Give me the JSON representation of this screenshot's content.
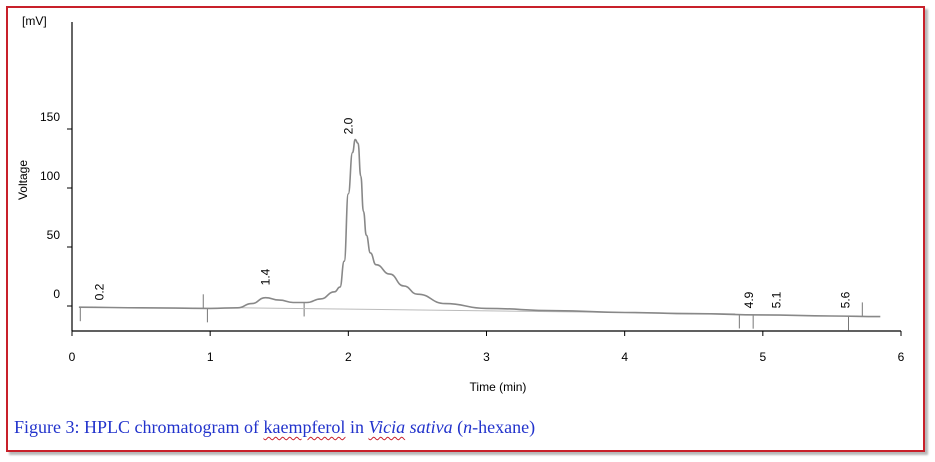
{
  "chart_data": {
    "type": "line",
    "xlabel": "Time (min)",
    "ylabel": "Voltage",
    "yunit": "[mV]",
    "xlim": [
      0,
      6
    ],
    "ylim": [
      -12,
      158
    ],
    "xticks": [
      "0",
      "1",
      "2",
      "3",
      "4",
      "5",
      "6"
    ],
    "yticks": [
      "0",
      "50",
      "100",
      "150"
    ],
    "series": [
      {
        "x": [
          0.05,
          0.5,
          1.0,
          1.2,
          1.3,
          1.4,
          1.5,
          1.6,
          1.7,
          1.8,
          1.9,
          1.94,
          1.97,
          2.0,
          2.03,
          2.05,
          2.07,
          2.09,
          2.11,
          2.13,
          2.16,
          2.2,
          2.3,
          2.4,
          2.5,
          2.7,
          3.0,
          3.5,
          4.0,
          4.5,
          5.0,
          5.5,
          5.85
        ],
        "y": [
          -1,
          -1.5,
          -2,
          -1.5,
          2,
          7,
          5,
          3,
          3,
          6,
          12,
          16,
          38,
          95,
          130,
          141,
          138,
          110,
          80,
          60,
          45,
          35,
          27,
          17,
          10,
          2,
          -2,
          -4,
          -5.5,
          -6.5,
          -7.5,
          -8.5,
          -9
        ]
      }
    ],
    "peak_labels": [
      "0.2",
      "1.4",
      "2.0",
      "4.9",
      "5.1",
      "5.6"
    ],
    "peak_times": [
      0.2,
      1.4,
      2.0,
      4.9,
      5.1,
      5.6
    ]
  },
  "caption": {
    "prefix": "Figure 3: HPLC chromatogram of ",
    "compound": "kaempferol",
    "in_word": " in ",
    "species": "Vicia",
    "species_epithet": " sativa",
    "paren_open": " (",
    "solvent_italic": "n",
    "solvent_rest": "-hexane)"
  },
  "colors": {
    "border": "#c8202a",
    "caption": "#2233cc",
    "trace": "#888888"
  }
}
